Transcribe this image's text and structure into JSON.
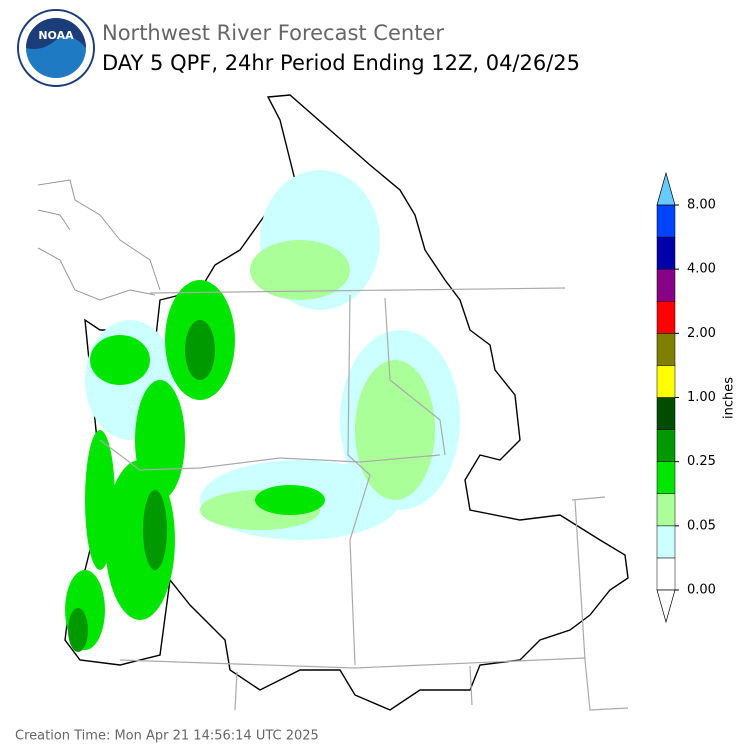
{
  "header": {
    "logo_text": "NOAA",
    "organization": "Northwest River Forecast Center",
    "title": "DAY 5 QPF, 24hr Period Ending 12Z, 04/26/25"
  },
  "colorbar": {
    "label": "inches",
    "ticks": [
      "0.00",
      "0.05",
      "0.25",
      "1.00",
      "2.00",
      "4.00",
      "8.00"
    ],
    "colors": [
      "#ffffff",
      "#ccffff",
      "#aaff99",
      "#00e600",
      "#009900",
      "#004d00",
      "#ffff00",
      "#808000",
      "#ff0000",
      "#880088",
      "#0000aa",
      "#0044ff"
    ],
    "over_color": "#66ccff",
    "under_color": "#ffffff"
  },
  "footer": {
    "creation_time": "Creation Time: Mon Apr 21 14:56:14 UTC 2025"
  }
}
